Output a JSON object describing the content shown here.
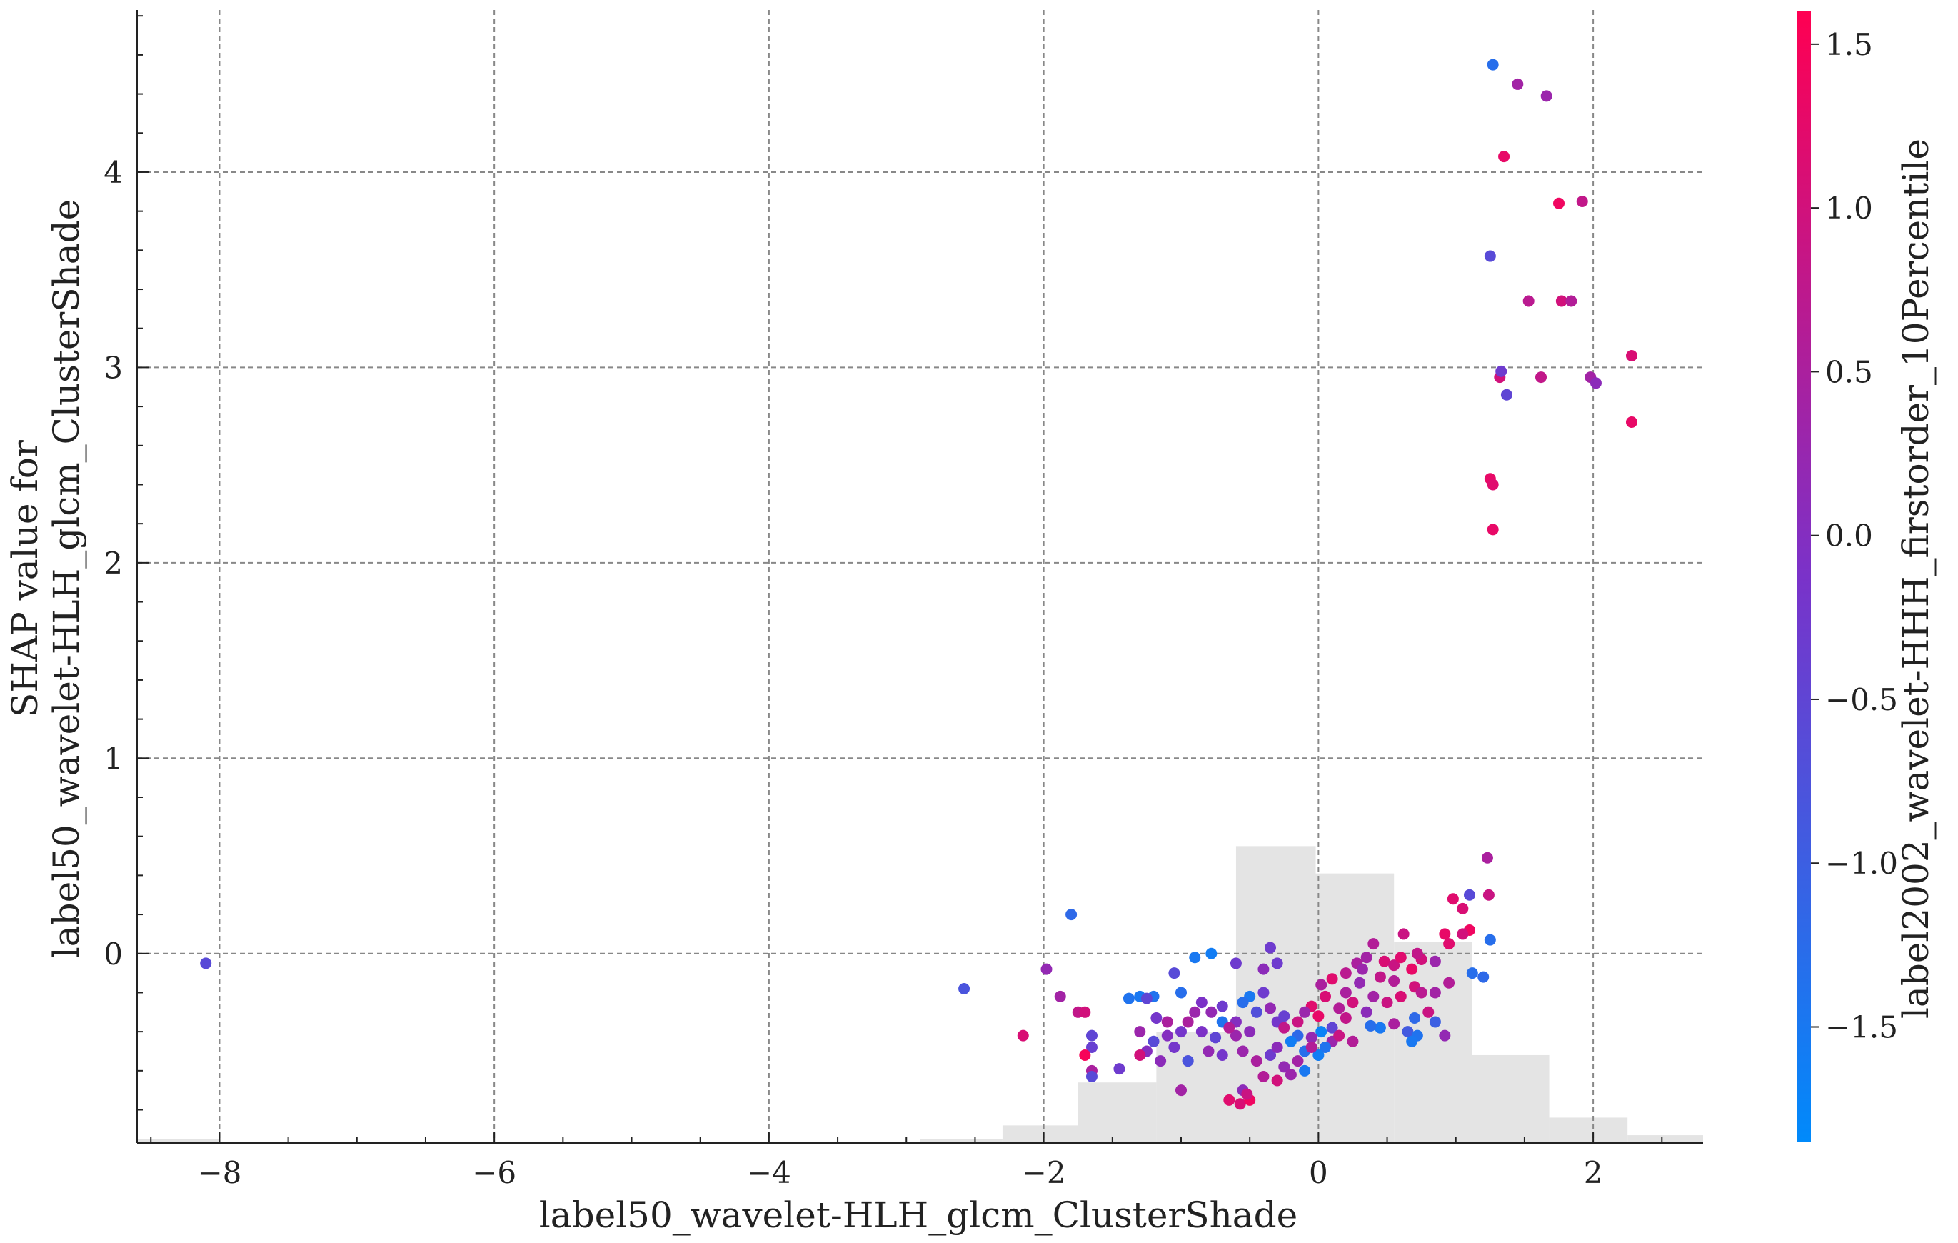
{
  "chart_data": {
    "type": "scatter",
    "xlabel": "label50_wavelet-HLH_glcm_ClusterShade",
    "ylabel_lines": [
      "SHAP value for",
      "label50_wavelet-HLH_glcm_ClusterShade"
    ],
    "colorbar_label": "label2002_wavelet-HHH_firstorder_10Percentile",
    "xlim": [
      -8.6,
      2.8
    ],
    "ylim": [
      -0.97,
      4.83
    ],
    "xticks": [
      -8,
      -6,
      -4,
      -2,
      0,
      2
    ],
    "xtick_labels": [
      "−8",
      "−6",
      "−4",
      "−2",
      "0",
      "2"
    ],
    "yticks": [
      0,
      1,
      2,
      3,
      4
    ],
    "ytick_labels": [
      "0",
      "1",
      "2",
      "3",
      "4"
    ],
    "color_range": [
      -1.85,
      1.6
    ],
    "cbar_ticks": [
      1.5,
      1.0,
      0.5,
      0.0,
      -0.5,
      -1.0,
      -1.5
    ],
    "cbar_tick_labels": [
      "1.5",
      "1.0",
      "0.5",
      "0.0",
      "−0.5",
      "−1.0",
      "−1.5"
    ],
    "grid": true,
    "colors": {
      "low": "#008afb",
      "mid": "#7a32c9",
      "high": "#ff0052",
      "histogram": "#e4e4e4",
      "grid": "#888888"
    },
    "histogram_bins": [
      {
        "x0": -8.6,
        "x1": -8.0,
        "h": 0.02
      },
      {
        "x0": -2.9,
        "x1": -2.3,
        "h": 0.02
      },
      {
        "x0": -2.3,
        "x1": -1.75,
        "h": 0.09
      },
      {
        "x0": -1.75,
        "x1": -1.18,
        "h": 0.31
      },
      {
        "x0": -1.18,
        "x1": -0.6,
        "h": 0.57
      },
      {
        "x0": -0.6,
        "x1": -0.02,
        "h": 1.52
      },
      {
        "x0": -0.02,
        "x1": 0.55,
        "h": 1.38
      },
      {
        "x0": 0.55,
        "x1": 1.12,
        "h": 1.03
      },
      {
        "x0": 1.12,
        "x1": 1.68,
        "h": 0.45
      },
      {
        "x0": 1.68,
        "x1": 2.25,
        "h": 0.13
      },
      {
        "x0": 2.25,
        "x1": 2.8,
        "h": 0.04
      }
    ],
    "points": [
      [
        -8.1,
        -0.05,
        -0.6
      ],
      [
        1.27,
        4.55,
        -1.3
      ],
      [
        1.45,
        4.45,
        0.4
      ],
      [
        1.66,
        4.39,
        0.3
      ],
      [
        1.35,
        4.08,
        1.3
      ],
      [
        1.75,
        3.84,
        1.4
      ],
      [
        1.92,
        3.85,
        0.8
      ],
      [
        1.25,
        3.57,
        -0.6
      ],
      [
        1.53,
        3.34,
        0.7
      ],
      [
        1.77,
        3.34,
        1.0
      ],
      [
        1.84,
        3.34,
        0.6
      ],
      [
        2.28,
        3.06,
        1.1
      ],
      [
        1.32,
        2.95,
        1.0
      ],
      [
        1.33,
        2.98,
        -0.3
      ],
      [
        1.62,
        2.95,
        0.8
      ],
      [
        1.98,
        2.95,
        0.4
      ],
      [
        2.02,
        2.92,
        0.1
      ],
      [
        1.37,
        2.86,
        -0.5
      ],
      [
        2.28,
        2.72,
        1.3
      ],
      [
        1.25,
        2.43,
        1.3
      ],
      [
        1.27,
        2.4,
        1.2
      ],
      [
        1.27,
        2.17,
        1.3
      ],
      [
        1.23,
        0.49,
        0.5
      ],
      [
        1.24,
        0.3,
        0.9
      ],
      [
        1.1,
        0.3,
        -0.6
      ],
      [
        0.98,
        0.28,
        1.2
      ],
      [
        1.05,
        0.23,
        1.1
      ],
      [
        1.1,
        0.12,
        1.4
      ],
      [
        0.92,
        0.1,
        1.3
      ],
      [
        1.05,
        0.1,
        1.0
      ],
      [
        0.95,
        0.05,
        1.2
      ],
      [
        1.25,
        0.07,
        -1.3
      ],
      [
        0.62,
        0.1,
        0.9
      ],
      [
        0.4,
        0.05,
        0.6
      ],
      [
        0.35,
        -0.02,
        0.4
      ],
      [
        0.28,
        -0.05,
        0.5
      ],
      [
        0.48,
        -0.04,
        1.1
      ],
      [
        0.55,
        -0.06,
        0.9
      ],
      [
        0.75,
        -0.03,
        1.0
      ],
      [
        0.85,
        -0.04,
        0.3
      ],
      [
        0.68,
        -0.08,
        1.3
      ],
      [
        0.2,
        -0.1,
        0.7
      ],
      [
        0.1,
        -0.13,
        1.2
      ],
      [
        0.45,
        -0.12,
        0.8
      ],
      [
        0.55,
        -0.14,
        0.6
      ],
      [
        0.3,
        -0.15,
        0.2
      ],
      [
        0.02,
        -0.16,
        0.5
      ],
      [
        0.7,
        -0.17,
        1.0
      ],
      [
        0.95,
        -0.15,
        0.6
      ],
      [
        1.12,
        -0.1,
        -1.3
      ],
      [
        1.2,
        -0.12,
        -1.2
      ],
      [
        0.6,
        -0.22,
        1.1
      ],
      [
        0.75,
        -0.2,
        0.7
      ],
      [
        0.5,
        -0.25,
        0.9
      ],
      [
        0.4,
        -0.22,
        0.4
      ],
      [
        0.25,
        -0.25,
        1.0
      ],
      [
        0.15,
        -0.28,
        0.6
      ],
      [
        -0.05,
        -0.27,
        1.2
      ],
      [
        -0.1,
        -0.3,
        0.3
      ],
      [
        0.0,
        -0.32,
        1.3
      ],
      [
        0.2,
        -0.33,
        0.8
      ],
      [
        0.35,
        -0.3,
        0.1
      ],
      [
        0.8,
        -0.3,
        0.9
      ],
      [
        0.85,
        -0.35,
        -1.0
      ],
      [
        0.7,
        -0.33,
        -1.2
      ],
      [
        0.65,
        -0.4,
        -0.9
      ],
      [
        0.55,
        -0.36,
        0.5
      ],
      [
        0.45,
        -0.38,
        -1.5
      ],
      [
        0.38,
        -0.37,
        -1.3
      ],
      [
        0.1,
        -0.38,
        -0.5
      ],
      [
        0.02,
        -0.4,
        -1.7
      ],
      [
        -0.05,
        -0.43,
        0.2
      ],
      [
        -0.15,
        -0.42,
        -1.2
      ],
      [
        -0.2,
        -0.45,
        -1.6
      ],
      [
        0.1,
        -0.45,
        0.3
      ],
      [
        0.25,
        -0.45,
        0.6
      ],
      [
        0.05,
        -0.48,
        -1.4
      ],
      [
        -0.1,
        -0.5,
        -1.3
      ],
      [
        0.0,
        -0.52,
        -1.6
      ],
      [
        0.72,
        -0.42,
        -1.4
      ],
      [
        0.68,
        -0.45,
        -1.5
      ],
      [
        0.92,
        -0.42,
        0.2
      ],
      [
        -0.3,
        -0.05,
        -0.3
      ],
      [
        -0.35,
        0.03,
        -0.3
      ],
      [
        -0.4,
        -0.08,
        0.1
      ],
      [
        -0.6,
        -0.05,
        -0.3
      ],
      [
        -0.4,
        -0.2,
        -0.3
      ],
      [
        -0.5,
        -0.22,
        -1.5
      ],
      [
        -0.55,
        -0.25,
        -1.3
      ],
      [
        -0.7,
        -0.27,
        -0.3
      ],
      [
        -0.78,
        -0.3,
        0.2
      ],
      [
        -0.7,
        -0.35,
        -1.4
      ],
      [
        -0.6,
        -0.35,
        0.0
      ],
      [
        -0.45,
        -0.3,
        -0.7
      ],
      [
        -0.35,
        -0.28,
        0.2
      ],
      [
        -0.3,
        -0.35,
        -0.2
      ],
      [
        -0.25,
        -0.32,
        -0.4
      ],
      [
        -0.5,
        -0.4,
        0.1
      ],
      [
        -0.6,
        -0.42,
        0.3
      ],
      [
        -0.75,
        -0.43,
        -0.5
      ],
      [
        -0.85,
        -0.4,
        -0.1
      ],
      [
        -0.9,
        -0.3,
        0.3
      ],
      [
        -0.85,
        -0.25,
        -0.1
      ],
      [
        -0.95,
        -0.35,
        0.5
      ],
      [
        -1.0,
        -0.4,
        -0.2
      ],
      [
        -1.1,
        -0.42,
        0.0
      ],
      [
        -1.2,
        -0.45,
        -0.6
      ],
      [
        -1.3,
        -0.4,
        0.3
      ],
      [
        -1.25,
        -0.5,
        0.0
      ],
      [
        -1.15,
        -0.55,
        0.1
      ],
      [
        -1.05,
        -0.48,
        -0.2
      ],
      [
        -0.95,
        -0.55,
        0.0
      ],
      [
        -0.8,
        -0.5,
        0.2
      ],
      [
        -0.7,
        -0.52,
        -0.2
      ],
      [
        -0.55,
        -0.5,
        0.3
      ],
      [
        -0.45,
        -0.55,
        0.5
      ],
      [
        -0.35,
        -0.52,
        -0.3
      ],
      [
        -0.25,
        -0.58,
        0.2
      ],
      [
        -0.15,
        -0.55,
        0.4
      ],
      [
        -0.1,
        -0.6,
        -1.5
      ],
      [
        -0.2,
        -0.62,
        0.3
      ],
      [
        -0.3,
        -0.65,
        1.0
      ],
      [
        -0.4,
        -0.63,
        0.6
      ],
      [
        -0.55,
        -0.7,
        0.1
      ],
      [
        -0.65,
        -0.75,
        1.2
      ],
      [
        -0.57,
        -0.77,
        1.1
      ],
      [
        -0.5,
        -0.75,
        1.4
      ],
      [
        -0.52,
        -0.72,
        0.9
      ],
      [
        -0.95,
        -0.55,
        -0.8
      ],
      [
        -1.2,
        -0.22,
        -1.4
      ],
      [
        -1.3,
        -0.22,
        -1.5
      ],
      [
        -1.25,
        -0.23,
        -0.5
      ],
      [
        -1.38,
        -0.23,
        -1.4
      ],
      [
        -1.0,
        -0.2,
        -1.3
      ],
      [
        -1.05,
        -0.1,
        -0.6
      ],
      [
        -0.9,
        -0.02,
        -1.5
      ],
      [
        -0.78,
        0.0,
        -1.6
      ],
      [
        -1.65,
        -0.42,
        -0.5
      ],
      [
        -1.65,
        -0.48,
        -0.4
      ],
      [
        -1.75,
        -0.3,
        0.8
      ],
      [
        -1.7,
        -0.3,
        1.0
      ],
      [
        -1.88,
        -0.22,
        0.4
      ],
      [
        -1.98,
        -0.08,
        0.2
      ],
      [
        -2.15,
        -0.42,
        1.1
      ],
      [
        -1.8,
        0.2,
        -1.2
      ],
      [
        -1.7,
        -0.52,
        1.5
      ],
      [
        -1.65,
        -0.6,
        0.5
      ],
      [
        -1.65,
        -0.63,
        -0.6
      ],
      [
        -1.45,
        -0.59,
        -0.3
      ],
      [
        -1.3,
        -0.52,
        1.0
      ],
      [
        -1.0,
        -0.7,
        0.4
      ],
      [
        -2.58,
        -0.18,
        -0.8
      ],
      [
        -1.18,
        -0.33,
        -0.2
      ],
      [
        -1.1,
        -0.35,
        0.5
      ],
      [
        -0.25,
        -0.38,
        0.8
      ],
      [
        -0.15,
        -0.35,
        0.9
      ],
      [
        0.05,
        -0.22,
        1.1
      ],
      [
        0.2,
        -0.2,
        0.5
      ],
      [
        0.32,
        -0.08,
        0.3
      ],
      [
        0.6,
        -0.02,
        1.2
      ],
      [
        0.72,
        0.0,
        0.8
      ],
      [
        0.85,
        -0.2,
        0.4
      ],
      [
        -0.05,
        -0.48,
        0.6
      ],
      [
        0.15,
        -0.42,
        0.9
      ],
      [
        -0.3,
        -0.48,
        0.1
      ],
      [
        -0.65,
        -0.38,
        0.6
      ]
    ]
  }
}
